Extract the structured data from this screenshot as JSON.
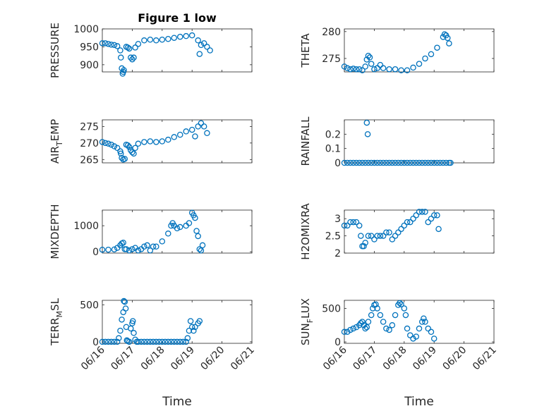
{
  "figure": {
    "title": "Figure 1 low",
    "xlabel": "Time",
    "marker_color": "#0072BD"
  },
  "chart_data": [
    {
      "type": "scatter",
      "ylabel": "PRESSURE",
      "title": "Figure 1 low",
      "xlim": [
        "06/16",
        "06/21"
      ],
      "xticks": [
        "06/16",
        "06/17",
        "06/18",
        "06/19",
        "06/20",
        "06/21"
      ],
      "ylim": [
        880,
        1000
      ],
      "yticks": [
        900,
        950,
        1000
      ],
      "ytick_labels": [
        "900",
        "950",
        "1000"
      ],
      "grid": true,
      "points": [
        [
          0,
          960
        ],
        [
          0.1,
          960
        ],
        [
          0.2,
          958
        ],
        [
          0.3,
          956
        ],
        [
          0.4,
          955
        ],
        [
          0.5,
          952
        ],
        [
          0.6,
          940
        ],
        [
          0.62,
          920
        ],
        [
          0.65,
          890
        ],
        [
          0.68,
          875
        ],
        [
          0.7,
          880
        ],
        [
          0.72,
          885
        ],
        [
          0.8,
          950
        ],
        [
          0.85,
          948
        ],
        [
          0.9,
          945
        ],
        [
          0.95,
          920
        ],
        [
          1.0,
          915
        ],
        [
          1.05,
          920
        ],
        [
          1.1,
          948
        ],
        [
          1.2,
          958
        ],
        [
          1.4,
          968
        ],
        [
          1.6,
          970
        ],
        [
          1.8,
          968
        ],
        [
          2.0,
          970
        ],
        [
          2.2,
          972
        ],
        [
          2.4,
          975
        ],
        [
          2.6,
          978
        ],
        [
          2.8,
          980
        ],
        [
          3.0,
          982
        ],
        [
          3.2,
          968
        ],
        [
          3.25,
          930
        ],
        [
          3.3,
          955
        ],
        [
          3.4,
          960
        ],
        [
          3.5,
          950
        ],
        [
          3.6,
          940
        ]
      ]
    },
    {
      "type": "scatter",
      "ylabel": "THETA",
      "xlim": [
        "06/16",
        "06/21"
      ],
      "xticks": [
        "06/16",
        "06/17",
        "06/18",
        "06/19",
        "06/20",
        "06/21"
      ],
      "ylim": [
        272.5,
        280.5
      ],
      "yticks": [
        275,
        280
      ],
      "ytick_labels": [
        "275",
        "280"
      ],
      "grid": true,
      "points": [
        [
          0,
          273.5
        ],
        [
          0.1,
          273.2
        ],
        [
          0.2,
          273.0
        ],
        [
          0.3,
          273.1
        ],
        [
          0.4,
          273.0
        ],
        [
          0.5,
          273.0
        ],
        [
          0.6,
          272.8
        ],
        [
          0.7,
          273.5
        ],
        [
          0.75,
          274.8
        ],
        [
          0.8,
          275.5
        ],
        [
          0.85,
          275.2
        ],
        [
          0.9,
          274.0
        ],
        [
          1.0,
          273.0
        ],
        [
          1.1,
          273.2
        ],
        [
          1.2,
          273.8
        ],
        [
          1.3,
          273.2
        ],
        [
          1.5,
          273.0
        ],
        [
          1.7,
          273.0
        ],
        [
          1.9,
          272.8
        ],
        [
          2.1,
          272.8
        ],
        [
          2.3,
          273.3
        ],
        [
          2.5,
          274.0
        ],
        [
          2.7,
          275.0
        ],
        [
          2.9,
          275.8
        ],
        [
          3.1,
          277.0
        ],
        [
          3.3,
          279.0
        ],
        [
          3.35,
          279.5
        ],
        [
          3.4,
          279.3
        ],
        [
          3.45,
          278.8
        ],
        [
          3.5,
          277.8
        ]
      ]
    },
    {
      "type": "scatter",
      "ylabel": "AIR_TEMP",
      "ylabel_main": "AIR",
      "ylabel_sub": "T",
      "ylabel_rest": "EMP",
      "xlim": [
        "06/16",
        "06/21"
      ],
      "xticks": [
        "06/16",
        "06/17",
        "06/18",
        "06/19",
        "06/20",
        "06/21"
      ],
      "ylim": [
        264,
        277
      ],
      "yticks": [
        265,
        270,
        275
      ],
      "ytick_labels": [
        "265",
        "270",
        "275"
      ],
      "grid": true,
      "points": [
        [
          0,
          270.3
        ],
        [
          0.1,
          270.0
        ],
        [
          0.2,
          269.8
        ],
        [
          0.3,
          269.5
        ],
        [
          0.4,
          269.0
        ],
        [
          0.5,
          268.5
        ],
        [
          0.6,
          267.5
        ],
        [
          0.62,
          266.8
        ],
        [
          0.65,
          265.5
        ],
        [
          0.7,
          265.0
        ],
        [
          0.75,
          265.2
        ],
        [
          0.8,
          269.5
        ],
        [
          0.85,
          269.3
        ],
        [
          0.9,
          268.8
        ],
        [
          0.95,
          267.8
        ],
        [
          1.0,
          267.2
        ],
        [
          1.05,
          266.8
        ],
        [
          1.1,
          268.5
        ],
        [
          1.2,
          269.8
        ],
        [
          1.4,
          270.3
        ],
        [
          1.6,
          270.5
        ],
        [
          1.8,
          270.3
        ],
        [
          2.0,
          270.5
        ],
        [
          2.2,
          271.0
        ],
        [
          2.4,
          271.8
        ],
        [
          2.6,
          272.5
        ],
        [
          2.8,
          273.5
        ],
        [
          3.0,
          274.0
        ],
        [
          3.1,
          272.0
        ],
        [
          3.2,
          275.0
        ],
        [
          3.3,
          276.0
        ],
        [
          3.4,
          275.0
        ],
        [
          3.5,
          273.0
        ]
      ]
    },
    {
      "type": "scatter",
      "ylabel": "RAINFALL",
      "xlim": [
        "06/16",
        "06/21"
      ],
      "xticks": [
        "06/16",
        "06/17",
        "06/18",
        "06/19",
        "06/20",
        "06/21"
      ],
      "ylim": [
        0,
        0.3
      ],
      "yticks": [
        0,
        0.1,
        0.2
      ],
      "ytick_labels": [
        "0",
        "0.1",
        "0.2"
      ],
      "grid": true,
      "points": [
        [
          0,
          0
        ],
        [
          0.1,
          0
        ],
        [
          0.2,
          0
        ],
        [
          0.3,
          0
        ],
        [
          0.4,
          0
        ],
        [
          0.5,
          0
        ],
        [
          0.6,
          0
        ],
        [
          0.7,
          0
        ],
        [
          0.75,
          0.28
        ],
        [
          0.78,
          0.2
        ],
        [
          0.8,
          0
        ],
        [
          0.9,
          0
        ],
        [
          1.0,
          0
        ],
        [
          1.1,
          0
        ],
        [
          1.2,
          0
        ],
        [
          1.3,
          0
        ],
        [
          1.4,
          0
        ],
        [
          1.5,
          0
        ],
        [
          1.6,
          0
        ],
        [
          1.7,
          0
        ],
        [
          1.8,
          0
        ],
        [
          1.9,
          0
        ],
        [
          2.0,
          0
        ],
        [
          2.1,
          0
        ],
        [
          2.2,
          0
        ],
        [
          2.3,
          0
        ],
        [
          2.4,
          0
        ],
        [
          2.5,
          0
        ],
        [
          2.6,
          0
        ],
        [
          2.7,
          0
        ],
        [
          2.8,
          0
        ],
        [
          2.9,
          0
        ],
        [
          3.0,
          0
        ],
        [
          3.1,
          0
        ],
        [
          3.2,
          0
        ],
        [
          3.3,
          0
        ],
        [
          3.4,
          0
        ],
        [
          3.5,
          0
        ],
        [
          3.55,
          0
        ]
      ]
    },
    {
      "type": "scatter",
      "ylabel": "MIXDEPTH",
      "xlim": [
        "06/16",
        "06/21"
      ],
      "xticks": [
        "06/16",
        "06/17",
        "06/18",
        "06/19",
        "06/20",
        "06/21"
      ],
      "ylim": [
        -50,
        1600
      ],
      "yticks": [
        0,
        1000
      ],
      "ytick_labels": [
        "0",
        "1000"
      ],
      "grid": true,
      "points": [
        [
          0,
          80
        ],
        [
          0.2,
          80
        ],
        [
          0.4,
          90
        ],
        [
          0.5,
          150
        ],
        [
          0.6,
          250
        ],
        [
          0.65,
          320
        ],
        [
          0.7,
          350
        ],
        [
          0.75,
          100
        ],
        [
          0.8,
          100
        ],
        [
          0.9,
          50
        ],
        [
          1.0,
          100
        ],
        [
          1.1,
          150
        ],
        [
          1.2,
          50
        ],
        [
          1.3,
          100
        ],
        [
          1.4,
          200
        ],
        [
          1.5,
          250
        ],
        [
          1.6,
          50
        ],
        [
          1.7,
          200
        ],
        [
          1.8,
          200
        ],
        [
          2.0,
          400
        ],
        [
          2.2,
          700
        ],
        [
          2.3,
          1000
        ],
        [
          2.35,
          1100
        ],
        [
          2.4,
          1000
        ],
        [
          2.5,
          900
        ],
        [
          2.6,
          950
        ],
        [
          2.8,
          1000
        ],
        [
          2.9,
          1100
        ],
        [
          3.0,
          1500
        ],
        [
          3.05,
          1400
        ],
        [
          3.1,
          1300
        ],
        [
          3.15,
          800
        ],
        [
          3.2,
          600
        ],
        [
          3.25,
          100
        ],
        [
          3.3,
          50
        ],
        [
          3.35,
          250
        ]
      ]
    },
    {
      "type": "scatter",
      "ylabel": "H2OMIXRA",
      "xlim": [
        "06/16",
        "06/21"
      ],
      "xticks": [
        "06/16",
        "06/17",
        "06/18",
        "06/19",
        "06/20",
        "06/21"
      ],
      "ylim": [
        2,
        3.25
      ],
      "yticks": [
        2,
        2.5,
        3
      ],
      "ytick_labels": [
        "2",
        "2.5",
        "3"
      ],
      "grid": true,
      "points": [
        [
          0,
          2.8
        ],
        [
          0.1,
          2.8
        ],
        [
          0.2,
          2.9
        ],
        [
          0.3,
          2.9
        ],
        [
          0.4,
          2.9
        ],
        [
          0.5,
          2.8
        ],
        [
          0.55,
          2.5
        ],
        [
          0.6,
          2.2
        ],
        [
          0.65,
          2.2
        ],
        [
          0.7,
          2.3
        ],
        [
          0.8,
          2.5
        ],
        [
          0.9,
          2.5
        ],
        [
          1.0,
          2.4
        ],
        [
          1.1,
          2.5
        ],
        [
          1.2,
          2.5
        ],
        [
          1.3,
          2.5
        ],
        [
          1.4,
          2.6
        ],
        [
          1.5,
          2.6
        ],
        [
          1.6,
          2.4
        ],
        [
          1.7,
          2.5
        ],
        [
          1.8,
          2.6
        ],
        [
          1.9,
          2.7
        ],
        [
          2.0,
          2.8
        ],
        [
          2.1,
          2.9
        ],
        [
          2.2,
          2.9
        ],
        [
          2.3,
          3.0
        ],
        [
          2.4,
          3.1
        ],
        [
          2.5,
          3.2
        ],
        [
          2.6,
          3.2
        ],
        [
          2.7,
          3.2
        ],
        [
          2.8,
          2.9
        ],
        [
          2.9,
          3.0
        ],
        [
          3.0,
          3.1
        ],
        [
          3.1,
          3.1
        ],
        [
          3.15,
          2.7
        ]
      ]
    },
    {
      "type": "scatter",
      "ylabel": "TERR_MSL",
      "ylabel_main": "TERR",
      "ylabel_sub": "M",
      "ylabel_rest": "SL",
      "xlim": [
        "06/16",
        "06/21"
      ],
      "xticks": [
        "06/16",
        "06/17",
        "06/18",
        "06/19",
        "06/20",
        "06/21"
      ],
      "ylim": [
        -20,
        560
      ],
      "yticks": [
        0,
        500
      ],
      "ytick_labels": [
        "0",
        "500"
      ],
      "grid": true,
      "points": [
        [
          0,
          0
        ],
        [
          0.1,
          0
        ],
        [
          0.2,
          0
        ],
        [
          0.3,
          0
        ],
        [
          0.4,
          0
        ],
        [
          0.5,
          0
        ],
        [
          0.55,
          50
        ],
        [
          0.6,
          150
        ],
        [
          0.65,
          300
        ],
        [
          0.7,
          400
        ],
        [
          0.72,
          550
        ],
        [
          0.75,
          540
        ],
        [
          0.78,
          450
        ],
        [
          0.8,
          200
        ],
        [
          0.82,
          20
        ],
        [
          0.85,
          10
        ],
        [
          0.9,
          0
        ],
        [
          0.95,
          180
        ],
        [
          1.0,
          250
        ],
        [
          1.02,
          280
        ],
        [
          1.05,
          120
        ],
        [
          1.1,
          30
        ],
        [
          1.15,
          0
        ],
        [
          1.2,
          0
        ],
        [
          1.3,
          0
        ],
        [
          1.4,
          0
        ],
        [
          1.5,
          0
        ],
        [
          1.6,
          0
        ],
        [
          1.7,
          0
        ],
        [
          1.8,
          0
        ],
        [
          1.9,
          0
        ],
        [
          2.0,
          0
        ],
        [
          2.1,
          0
        ],
        [
          2.2,
          0
        ],
        [
          2.3,
          0
        ],
        [
          2.4,
          0
        ],
        [
          2.5,
          0
        ],
        [
          2.6,
          0
        ],
        [
          2.7,
          0
        ],
        [
          2.8,
          0
        ],
        [
          2.85,
          50
        ],
        [
          2.9,
          150
        ],
        [
          2.95,
          280
        ],
        [
          3.0,
          200
        ],
        [
          3.05,
          150
        ],
        [
          3.1,
          200
        ],
        [
          3.2,
          250
        ],
        [
          3.25,
          280
        ]
      ]
    },
    {
      "type": "scatter",
      "ylabel": "SUN_FLUX",
      "ylabel_main": "SUN",
      "ylabel_sub": "F",
      "ylabel_rest": "LUX",
      "xlim": [
        "06/16",
        "06/21"
      ],
      "xticks": [
        "06/16",
        "06/17",
        "06/18",
        "06/19",
        "06/20",
        "06/21"
      ],
      "ylim": [
        -20,
        620
      ],
      "yticks": [
        0,
        500
      ],
      "ytick_labels": [
        "0",
        "500"
      ],
      "grid": true,
      "points": [
        [
          0,
          150
        ],
        [
          0.1,
          150
        ],
        [
          0.2,
          180
        ],
        [
          0.3,
          200
        ],
        [
          0.4,
          220
        ],
        [
          0.5,
          250
        ],
        [
          0.55,
          280
        ],
        [
          0.6,
          300
        ],
        [
          0.65,
          250
        ],
        [
          0.7,
          200
        ],
        [
          0.75,
          220
        ],
        [
          0.8,
          300
        ],
        [
          0.9,
          400
        ],
        [
          0.95,
          500
        ],
        [
          1.0,
          550
        ],
        [
          1.05,
          560
        ],
        [
          1.1,
          500
        ],
        [
          1.2,
          400
        ],
        [
          1.3,
          300
        ],
        [
          1.4,
          200
        ],
        [
          1.5,
          180
        ],
        [
          1.6,
          250
        ],
        [
          1.7,
          400
        ],
        [
          1.8,
          550
        ],
        [
          1.85,
          580
        ],
        [
          1.9,
          560
        ],
        [
          2.0,
          500
        ],
        [
          2.05,
          400
        ],
        [
          2.1,
          200
        ],
        [
          2.2,
          100
        ],
        [
          2.3,
          50
        ],
        [
          2.4,
          80
        ],
        [
          2.5,
          200
        ],
        [
          2.6,
          300
        ],
        [
          2.65,
          350
        ],
        [
          2.7,
          300
        ],
        [
          2.8,
          200
        ],
        [
          2.9,
          150
        ],
        [
          3.0,
          50
        ]
      ]
    }
  ]
}
